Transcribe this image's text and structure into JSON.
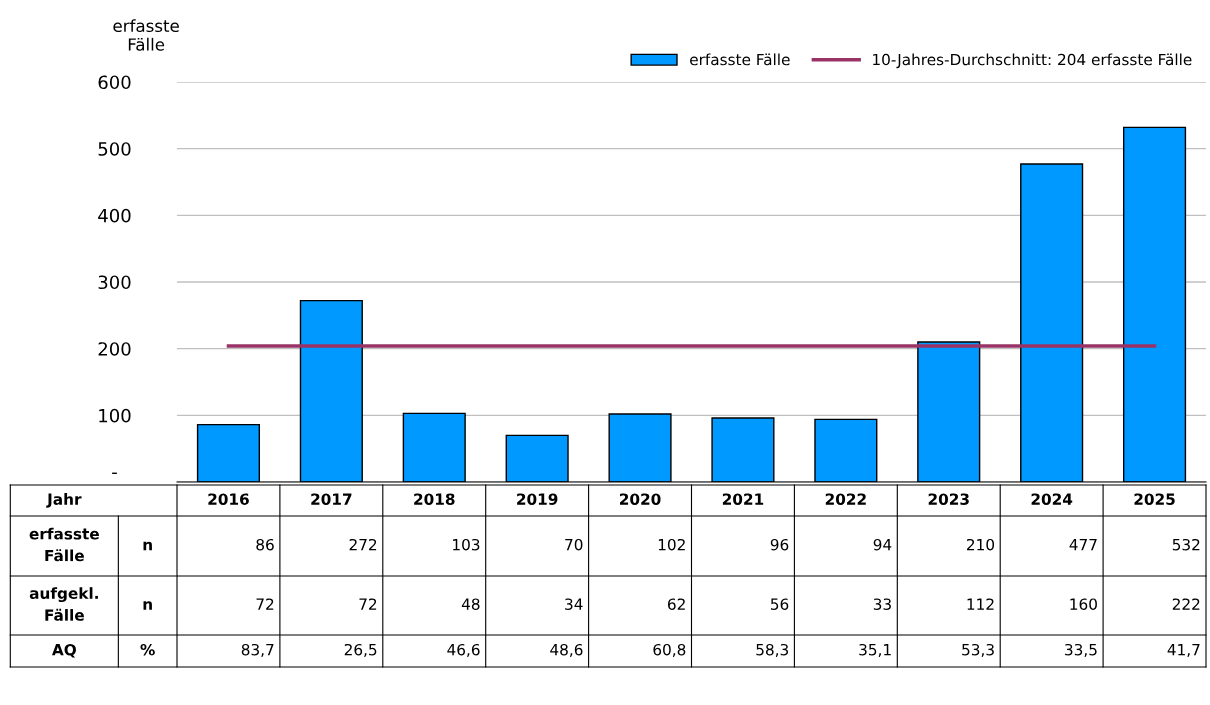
{
  "chart_data": [
    {
      "type": "bar",
      "ylabel": "erfasste\nFälle",
      "categories": [
        "2016",
        "2017",
        "2018",
        "2019",
        "2020",
        "2021",
        "2022",
        "2023",
        "2024",
        "2025"
      ],
      "ylim": [
        0,
        600
      ],
      "yticks": [
        {
          "value": 0,
          "label": "-"
        },
        100,
        200,
        300,
        400,
        500,
        600
      ],
      "grid": "y",
      "legend": "top right",
      "data_labels": true,
      "series": [
        {
          "name": "erfasste Fälle",
          "color": "#0099ff",
          "values": [
            86,
            272,
            103,
            70,
            102,
            96,
            94,
            210,
            477,
            532
          ]
        },
        {
          "name": "10-Jahres-Durchschnitt: 204 erfasste Fälle",
          "type": "line",
          "color": "#993366",
          "values": [
            204,
            204,
            204,
            204,
            204,
            204,
            204,
            204,
            204,
            204
          ],
          "value_labels": [
            null,
            null,
            null,
            null,
            null,
            null,
            null,
            null,
            null,
            null
          ]
        }
      ],
      "annotations": [
        "Jahr",
        "n"
      ]
    },
    {
      "type": "other",
      "annotations": [
        "aufgekl. Fälle",
        "n",
        "72",
        "72",
        "48",
        "34",
        "62",
        "56",
        "33",
        "112",
        "160",
        "222",
        "AQ",
        "%",
        "83,7",
        "26,5",
        "46,6",
        "48,6",
        "60,8",
        "58,3",
        "35,1",
        "53,3",
        "33,5",
        "41,7"
      ]
    }
  ]
}
